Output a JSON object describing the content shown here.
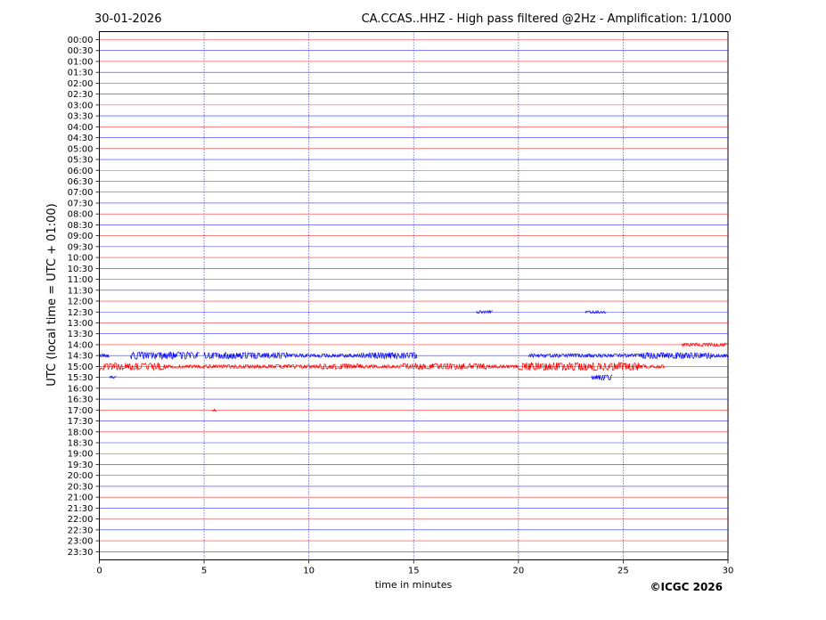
{
  "chart_data": {
    "type": "line",
    "date": "30-01-2026",
    "title": "CA.CCAS..HHZ - High pass filtered @2Hz - Amplification: 1/1000",
    "xlabel": "time in minutes",
    "ylabel": "UTC (local time = UTC + 01:00)",
    "xlim": [
      0,
      30
    ],
    "x_ticks": [
      0,
      5,
      10,
      15,
      20,
      25,
      30
    ],
    "x_gridlines": [
      5,
      10,
      15,
      20,
      25
    ],
    "row_labels": [
      "00:00",
      "00:30",
      "01:00",
      "01:30",
      "02:00",
      "02:30",
      "03:00",
      "03:30",
      "04:00",
      "04:30",
      "05:00",
      "05:30",
      "06:00",
      "06:30",
      "07:00",
      "07:30",
      "08:00",
      "08:30",
      "09:00",
      "09:30",
      "10:00",
      "10:30",
      "11:00",
      "11:30",
      "12:00",
      "12:30",
      "13:00",
      "13:30",
      "14:00",
      "14:30",
      "15:00",
      "15:30",
      "16:00",
      "16:30",
      "17:00",
      "17:30",
      "18:00",
      "18:30",
      "19:00",
      "19:30",
      "20:00",
      "20:30",
      "21:00",
      "21:30",
      "22:00",
      "22:30",
      "23:00",
      "23:30"
    ],
    "trace_colors": [
      "#ff0000",
      "#0000ff"
    ],
    "bursts": [
      {
        "row": "12:30",
        "segments": [
          [
            18.0,
            18.8,
            1.5
          ],
          [
            23.2,
            24.2,
            1.5
          ]
        ]
      },
      {
        "row": "14:00",
        "segments": [
          [
            27.8,
            30.0,
            2.0
          ]
        ]
      },
      {
        "row": "14:30",
        "segments": [
          [
            0.0,
            0.5,
            2.0
          ],
          [
            1.5,
            4.8,
            4.0
          ],
          [
            5.0,
            9.0,
            3.5
          ],
          [
            9.0,
            12.5,
            2.0
          ],
          [
            12.5,
            15.2,
            3.5
          ],
          [
            20.5,
            25.8,
            2.0
          ],
          [
            25.8,
            29.2,
            3.5
          ],
          [
            29.2,
            30.0,
            2.0
          ]
        ]
      },
      {
        "row": "15:00",
        "segments": [
          [
            0.0,
            3.2,
            4.0
          ],
          [
            3.2,
            10.5,
            2.0
          ],
          [
            10.5,
            12.5,
            3.0
          ],
          [
            12.5,
            14.5,
            2.0
          ],
          [
            14.5,
            18.5,
            3.5
          ],
          [
            18.5,
            20.0,
            2.0
          ],
          [
            20.0,
            25.8,
            4.5
          ],
          [
            25.8,
            27.0,
            2.0
          ]
        ]
      },
      {
        "row": "15:30",
        "segments": [
          [
            0.5,
            0.8,
            1.5
          ],
          [
            23.5,
            24.5,
            3.0
          ]
        ]
      },
      {
        "row": "17:00",
        "segments": [
          [
            5.4,
            5.6,
            2.0
          ]
        ]
      }
    ]
  },
  "copyright": "©ICGC 2026"
}
